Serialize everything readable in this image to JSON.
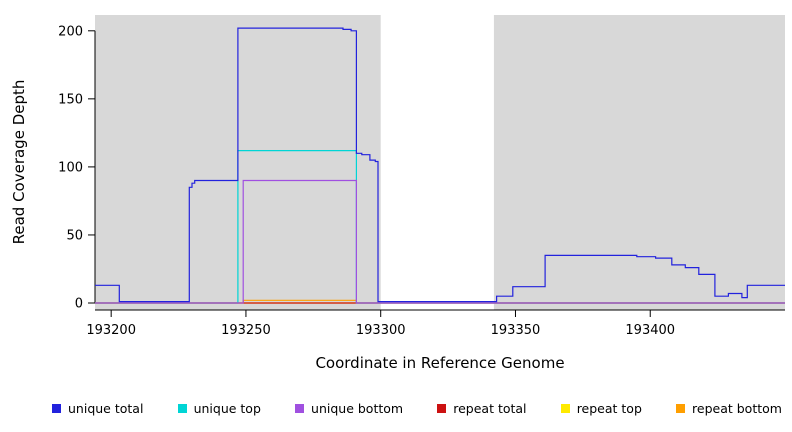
{
  "chart_data": {
    "type": "line",
    "title": "",
    "xlabel": "Coordinate in Reference Genome",
    "ylabel": "Read Coverage Depth",
    "xlim": [
      193194,
      193450
    ],
    "ylim": [
      0,
      205
    ],
    "xticks": [
      193200,
      193250,
      193300,
      193350,
      193400
    ],
    "yticks": [
      0,
      50,
      100,
      150,
      200
    ],
    "grid": false,
    "legend_position": "bottom",
    "shaded_regions": [
      {
        "x0": 193194,
        "x1": 193300,
        "color": "#d8d8d8"
      },
      {
        "x0": 193342,
        "x1": 193450,
        "color": "#d8d8d8"
      }
    ],
    "series": [
      {
        "name": "repeat top",
        "color": "#ffea00",
        "step": true,
        "points": [
          [
            193194,
            0
          ],
          [
            193450,
            0
          ]
        ]
      },
      {
        "name": "repeat bottom",
        "color": "#ff9f00",
        "step": true,
        "points": [
          [
            193194,
            0
          ],
          [
            193249,
            2
          ],
          [
            193291,
            0
          ],
          [
            193450,
            0
          ]
        ]
      },
      {
        "name": "repeat total",
        "color": "#cc1111",
        "step": true,
        "points": [
          [
            193194,
            0
          ],
          [
            193450,
            0
          ]
        ]
      },
      {
        "name": "unique top",
        "color": "#00d5d5",
        "step": true,
        "points": [
          [
            193194,
            0
          ],
          [
            193247,
            112
          ],
          [
            193291,
            0
          ],
          [
            193450,
            0
          ]
        ]
      },
      {
        "name": "unique bottom",
        "color": "#a050e0",
        "step": true,
        "points": [
          [
            193194,
            0
          ],
          [
            193249,
            90
          ],
          [
            193291,
            0
          ],
          [
            193450,
            0
          ]
        ]
      },
      {
        "name": "unique total",
        "color": "#2222dd",
        "step": true,
        "points": [
          [
            193194,
            13
          ],
          [
            193203,
            1
          ],
          [
            193229,
            85
          ],
          [
            193230,
            88
          ],
          [
            193231,
            90
          ],
          [
            193247,
            202
          ],
          [
            193286,
            201
          ],
          [
            193289,
            200
          ],
          [
            193291,
            110
          ],
          [
            193293,
            109
          ],
          [
            193296,
            105
          ],
          [
            193298,
            104
          ],
          [
            193299,
            1
          ],
          [
            193343,
            5
          ],
          [
            193349,
            12
          ],
          [
            193361,
            35
          ],
          [
            193395,
            34
          ],
          [
            193402,
            33
          ],
          [
            193408,
            28
          ],
          [
            193413,
            26
          ],
          [
            193418,
            21
          ],
          [
            193424,
            5
          ],
          [
            193429,
            7
          ],
          [
            193434,
            4
          ],
          [
            193436,
            13
          ],
          [
            193450,
            13
          ]
        ]
      }
    ],
    "legend": [
      {
        "label": "unique total",
        "color": "#2222dd"
      },
      {
        "label": "unique top",
        "color": "#00d5d5"
      },
      {
        "label": "unique bottom",
        "color": "#a050e0"
      },
      {
        "label": "repeat total",
        "color": "#cc1111"
      },
      {
        "label": "repeat top",
        "color": "#ffea00"
      },
      {
        "label": "repeat bottom",
        "color": "#ff9f00"
      }
    ]
  }
}
